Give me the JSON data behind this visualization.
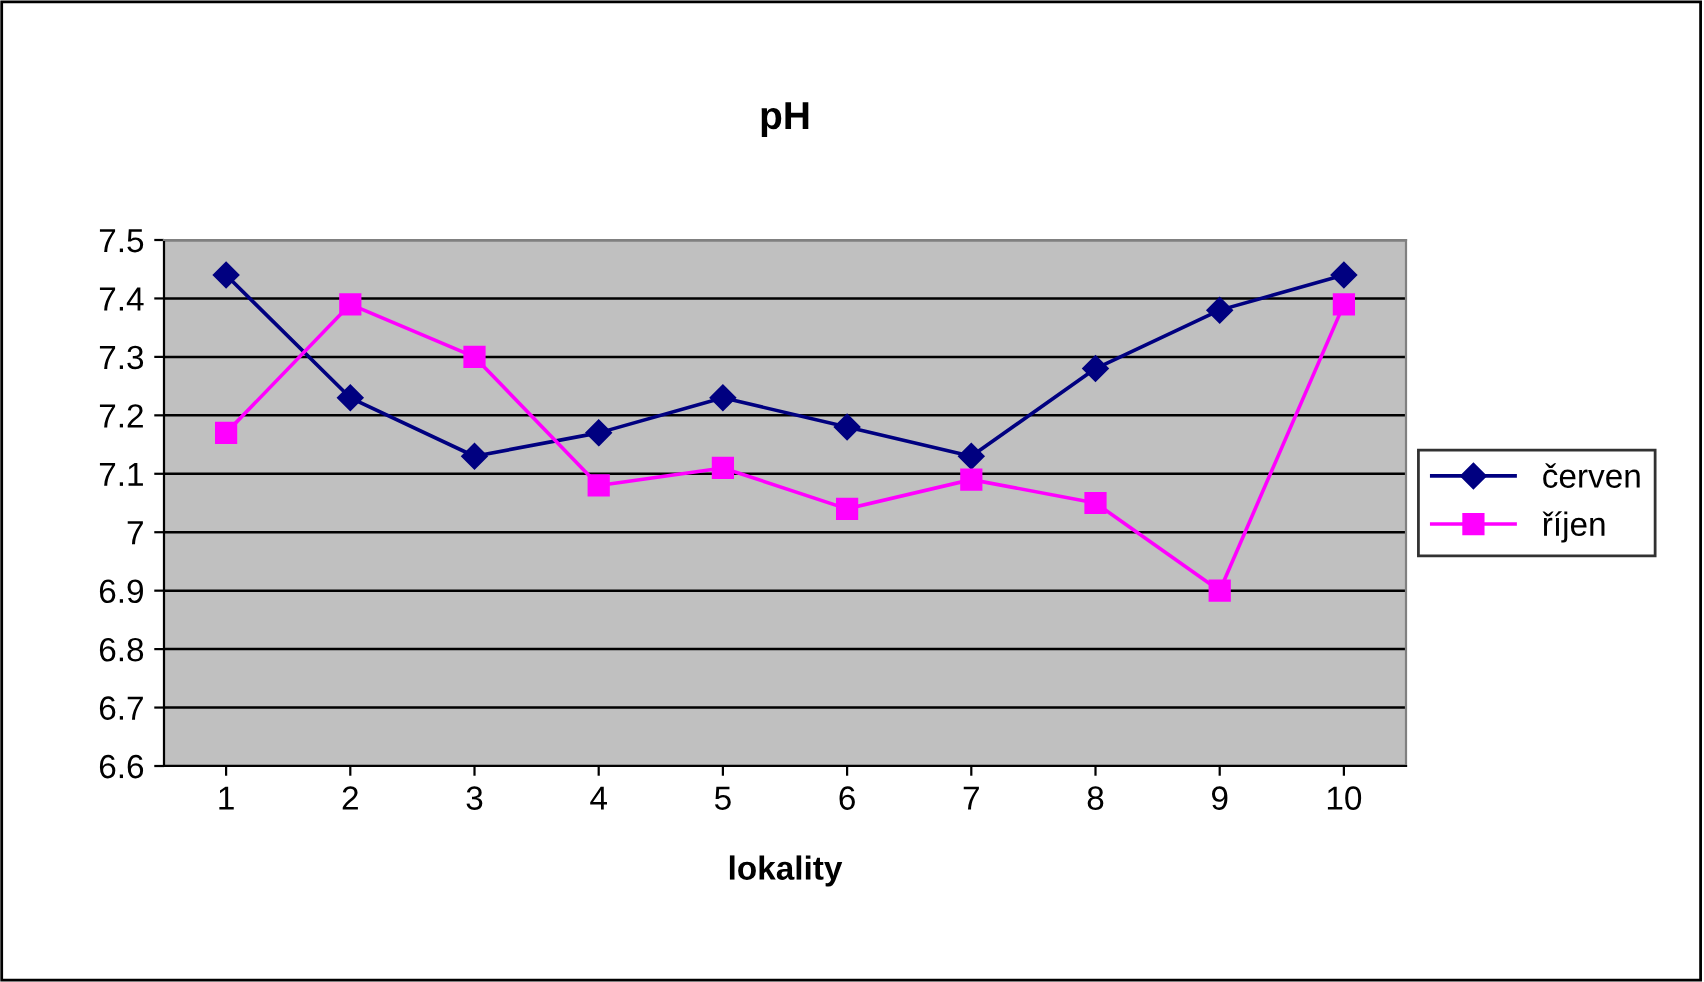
{
  "chart_data": {
    "type": "line",
    "title": "pH",
    "xlabel": "lokality",
    "categories": [
      "1",
      "2",
      "3",
      "4",
      "5",
      "6",
      "7",
      "8",
      "9",
      "10"
    ],
    "series": [
      {
        "name": "červen",
        "color": "#000080",
        "marker": "diamond",
        "values": [
          7.44,
          7.23,
          7.13,
          7.17,
          7.23,
          7.18,
          7.13,
          7.28,
          7.38,
          7.44
        ]
      },
      {
        "name": "říjen",
        "color": "#ff00ff",
        "marker": "square",
        "values": [
          7.17,
          7.39,
          7.3,
          7.08,
          7.11,
          7.04,
          7.09,
          7.05,
          6.9,
          7.39
        ]
      }
    ],
    "ylim": [
      6.6,
      7.5
    ],
    "yticks": [
      6.6,
      6.7,
      6.8,
      6.9,
      7,
      7.1,
      7.2,
      7.3,
      7.4,
      7.5
    ],
    "grid": "y",
    "legend": "right",
    "line_style": "solid"
  }
}
